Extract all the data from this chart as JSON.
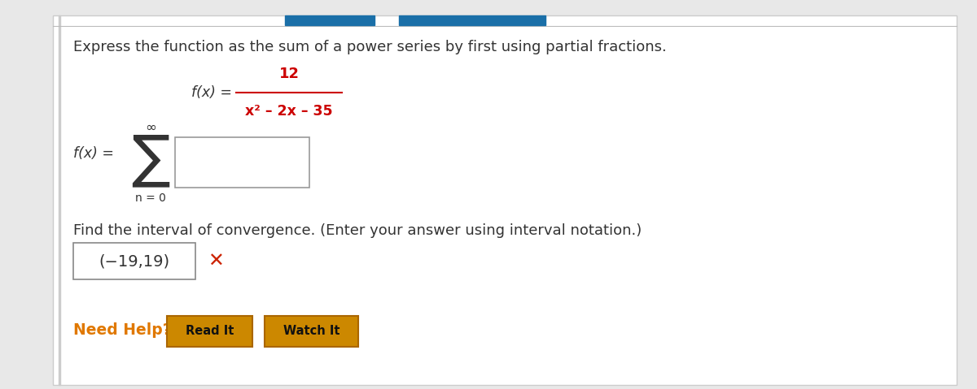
{
  "outer_bg": "#e8e8e8",
  "content_bg": "#ffffff",
  "title_text": "Express the function as the sum of a power series by first using partial fractions.",
  "title_color": "#333333",
  "title_fontsize": 13.0,
  "fraction_numerator": "12",
  "fraction_numerator_color": "#cc0000",
  "fraction_denominator": "x² – 2x – 35",
  "fraction_denominator_color": "#cc0000",
  "fx_label_fraction": "f(x) =",
  "fx_label_sigma": "f(x) =",
  "fx_color": "#333333",
  "sigma_color": "#333333",
  "n_equals_0": "n = 0",
  "inf_symbol": "∞",
  "interval_text": "Find the interval of convergence. (Enter your answer using interval notation.)",
  "interval_color": "#333333",
  "interval_fontsize": 13.0,
  "answer_text": "(−19,19)",
  "answer_color": "#333333",
  "answer_fontsize": 14,
  "x_mark_color": "#cc2200",
  "need_help_text": "Need Help?",
  "need_help_color": "#e07800",
  "need_help_fontsize": 13.5,
  "read_it_text": "Read It",
  "watch_it_text": "Watch It",
  "button_bg": "#cc8800",
  "button_border": "#aa6600",
  "button_text_color": "#111111",
  "button_fontsize": 10.5,
  "left_border_color": "#cccccc",
  "top_border_color": "#cccccc",
  "blue_bar_color": "#1a6fa8"
}
